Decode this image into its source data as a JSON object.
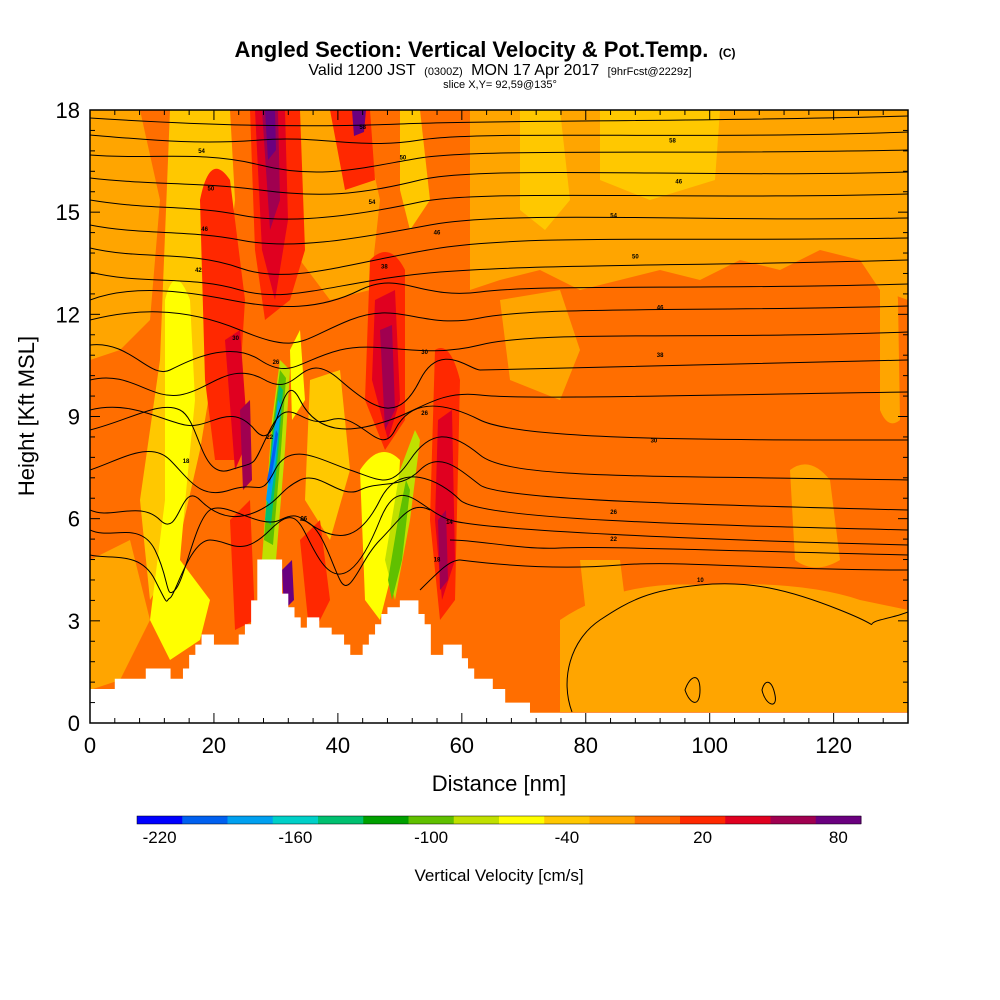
{
  "chart_data": {
    "type": "heatmap",
    "title": "Angled Section: Vertical Velocity & Pot.Temp.",
    "title_units": "(C)",
    "subtitle_prefix": "Valid 1200 JST",
    "subtitle_utc": "(0300Z)",
    "subtitle_date": "MON 17 Apr 2017",
    "subtitle_forecast": "[9hrFcst@2229z]",
    "slice_info": "slice X,Y= 92,59@135°",
    "xlabel": "Distance [nm]",
    "ylabel": "Height [Kft MSL]",
    "xlim": [
      0,
      132
    ],
    "ylim": [
      0,
      18
    ],
    "x_ticks": [
      "0",
      "20",
      "40",
      "60",
      "80",
      "100",
      "120"
    ],
    "y_ticks": [
      "0",
      "3",
      "6",
      "9",
      "12",
      "15",
      "18"
    ],
    "colorbar": {
      "title": "Vertical Velocity [cm/s]",
      "min": -230,
      "max": 90,
      "step": 20,
      "tick_labels": [
        "-220",
        "-160",
        "-100",
        "-40",
        "20",
        "80"
      ],
      "colors": [
        "#0000ff",
        "#0060f0",
        "#00a0f0",
        "#00d0c8",
        "#00c070",
        "#00a000",
        "#60c000",
        "#c0e000",
        "#ffff00",
        "#ffc800",
        "#ffa500",
        "#ff6e00",
        "#ff2800",
        "#e00020",
        "#a00050",
        "#6a007f"
      ]
    },
    "terrain": [
      [
        0,
        1
      ],
      [
        1,
        1
      ],
      [
        4,
        1
      ],
      [
        4,
        1.3
      ],
      [
        9,
        1.3
      ],
      [
        9,
        1.6
      ],
      [
        13,
        1.6
      ],
      [
        13,
        1.3
      ],
      [
        15,
        1.3
      ],
      [
        15,
        1.6
      ],
      [
        16,
        1.6
      ],
      [
        16,
        2
      ],
      [
        17,
        2
      ],
      [
        17,
        2.3
      ],
      [
        18,
        2.3
      ],
      [
        18,
        2.6
      ],
      [
        20,
        2.6
      ],
      [
        20,
        2.3
      ],
      [
        24,
        2.3
      ],
      [
        24,
        2.6
      ],
      [
        25,
        2.6
      ],
      [
        25,
        2.9
      ],
      [
        26,
        2.9
      ],
      [
        26,
        3.6
      ],
      [
        27,
        3.6
      ],
      [
        27,
        4.8
      ],
      [
        31,
        4.8
      ],
      [
        31,
        3.8
      ],
      [
        32,
        3.8
      ],
      [
        32,
        3.4
      ],
      [
        33,
        3.4
      ],
      [
        33,
        3.1
      ],
      [
        34,
        3.1
      ],
      [
        34,
        2.8
      ],
      [
        35,
        2.8
      ],
      [
        35,
        3.1
      ],
      [
        37,
        3.1
      ],
      [
        37,
        2.8
      ],
      [
        39,
        2.8
      ],
      [
        39,
        2.6
      ],
      [
        41,
        2.6
      ],
      [
        41,
        2.3
      ],
      [
        42,
        2.3
      ],
      [
        42,
        2
      ],
      [
        44,
        2
      ],
      [
        44,
        2.3
      ],
      [
        45,
        2.3
      ],
      [
        45,
        2.6
      ],
      [
        46,
        2.6
      ],
      [
        46,
        2.9
      ],
      [
        47,
        2.9
      ],
      [
        47,
        3.2
      ],
      [
        48,
        3.2
      ],
      [
        48,
        3.4
      ],
      [
        50,
        3.4
      ],
      [
        50,
        3.6
      ],
      [
        53,
        3.6
      ],
      [
        53,
        3.2
      ],
      [
        54,
        3.2
      ],
      [
        54,
        2.9
      ],
      [
        55,
        2.9
      ],
      [
        55,
        2
      ],
      [
        57,
        2
      ],
      [
        57,
        2.3
      ],
      [
        60,
        2.3
      ],
      [
        60,
        1.9
      ],
      [
        61,
        1.9
      ],
      [
        61,
        1.6
      ],
      [
        62,
        1.6
      ],
      [
        62,
        1.3
      ],
      [
        65,
        1.3
      ],
      [
        65,
        1
      ],
      [
        67,
        1
      ],
      [
        67,
        0.6
      ],
      [
        71,
        0.6
      ],
      [
        71,
        0.3
      ],
      [
        132,
        0.3
      ]
    ],
    "contour_labels": [
      {
        "x": 18,
        "y": 16.8,
        "text": "54"
      },
      {
        "x": 19.5,
        "y": 15.7,
        "text": "50"
      },
      {
        "x": 18.5,
        "y": 14.5,
        "text": "46"
      },
      {
        "x": 17.5,
        "y": 13.3,
        "text": "42"
      },
      {
        "x": 23.5,
        "y": 11.3,
        "text": "30"
      },
      {
        "x": 30,
        "y": 10.6,
        "text": "26"
      },
      {
        "x": 15.5,
        "y": 7.7,
        "text": "18"
      },
      {
        "x": 29,
        "y": 8.4,
        "text": "22"
      },
      {
        "x": 34.5,
        "y": 6.0,
        "text": "06"
      },
      {
        "x": 44,
        "y": 17.5,
        "text": "58"
      },
      {
        "x": 50.5,
        "y": 16.6,
        "text": "50"
      },
      {
        "x": 45.5,
        "y": 15.3,
        "text": "54"
      },
      {
        "x": 56,
        "y": 14.4,
        "text": "46"
      },
      {
        "x": 47.5,
        "y": 13.4,
        "text": "38"
      },
      {
        "x": 54,
        "y": 10.9,
        "text": "30"
      },
      {
        "x": 54,
        "y": 9.1,
        "text": "26"
      },
      {
        "x": 58,
        "y": 5.9,
        "text": "14"
      },
      {
        "x": 56,
        "y": 4.8,
        "text": "18"
      },
      {
        "x": 94,
        "y": 17.1,
        "text": "58"
      },
      {
        "x": 95,
        "y": 15.9,
        "text": "46"
      },
      {
        "x": 84.5,
        "y": 14.9,
        "text": "54"
      },
      {
        "x": 88,
        "y": 13.7,
        "text": "50"
      },
      {
        "x": 92,
        "y": 12.2,
        "text": "46"
      },
      {
        "x": 92,
        "y": 10.8,
        "text": "38"
      },
      {
        "x": 91,
        "y": 8.3,
        "text": "30"
      },
      {
        "x": 84.5,
        "y": 6.2,
        "text": "26"
      },
      {
        "x": 84.5,
        "y": 5.4,
        "text": "22"
      },
      {
        "x": 98.5,
        "y": 4.2,
        "text": "10"
      }
    ]
  }
}
